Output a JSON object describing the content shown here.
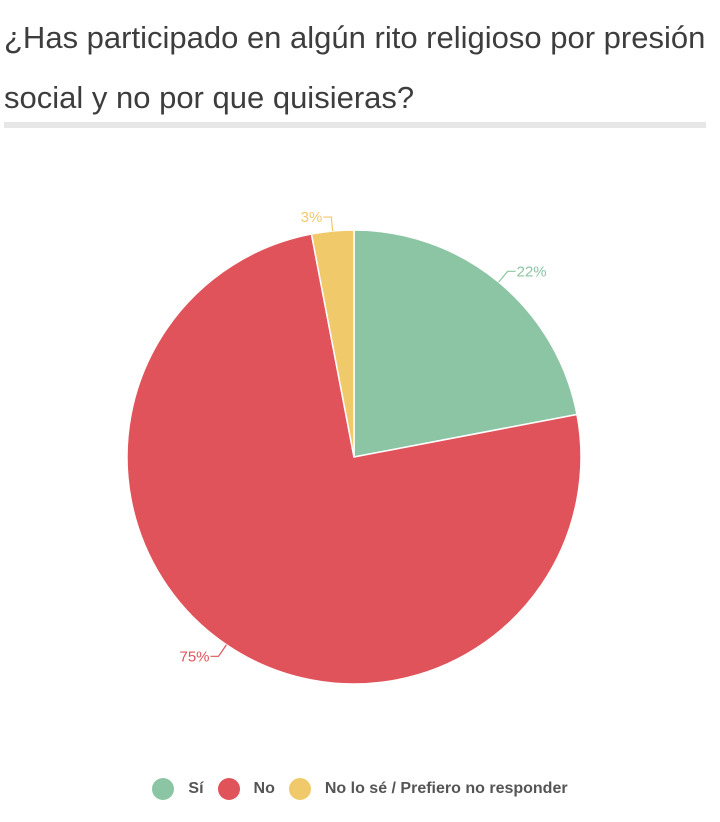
{
  "chart_data": {
    "type": "pie",
    "title": "¿Has participado en algún rito religioso por presión social y no por que quisieras?",
    "slices": [
      {
        "label": "Sí",
        "value": 22,
        "display": "22%",
        "color": "#8cc5a3"
      },
      {
        "label": "No",
        "value": 75,
        "display": "75%",
        "color": "#e0535a"
      },
      {
        "label": "No lo sé / Prefiero no responder",
        "value": 3,
        "display": "3%",
        "color": "#f0c96a"
      }
    ],
    "start_angle": "top, clockwise",
    "legend_position": "bottom"
  }
}
